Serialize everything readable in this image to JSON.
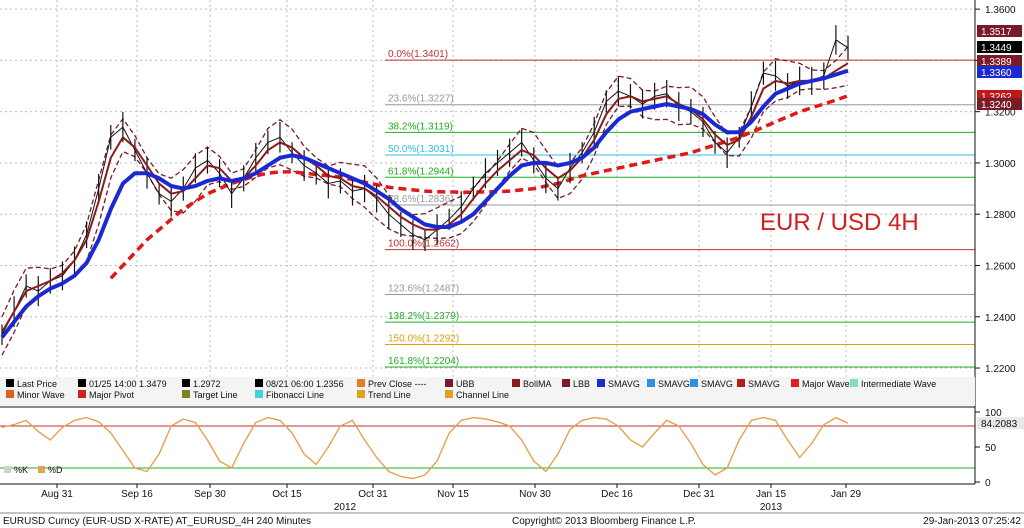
{
  "chart_data": {
    "type": "line",
    "title": "EUR / USD 4H",
    "ylim": [
      1.2165,
      1.362
    ],
    "y_ticks": [
      "1.3600",
      "1.3400",
      "1.3200",
      "1.3000",
      "1.2800",
      "1.2600",
      "1.2400",
      "1.2200"
    ],
    "x_ticks": [
      "Aug 31",
      "Sep 16",
      "Sep 30",
      "Oct 15",
      "Oct 31",
      "Nov 15",
      "Nov 30",
      "Dec 16",
      "Dec 31",
      "Jan 15",
      "Jan 29"
    ],
    "year_labels": [
      "2012",
      "2013"
    ],
    "price_series": {
      "name": "Last Price",
      "values": [
        1.233,
        1.242,
        1.252,
        1.25,
        1.254,
        1.256,
        1.262,
        1.272,
        1.29,
        1.31,
        1.314,
        1.305,
        1.296,
        1.288,
        1.285,
        1.29,
        1.298,
        1.301,
        1.296,
        1.288,
        1.294,
        1.302,
        1.308,
        1.31,
        1.304,
        1.299,
        1.296,
        1.292,
        1.293,
        1.289,
        1.29,
        1.286,
        1.28,
        1.276,
        1.272,
        1.27,
        1.274,
        1.278,
        1.283,
        1.29,
        1.296,
        1.3,
        1.304,
        1.308,
        1.301,
        1.294,
        1.29,
        1.298,
        1.304,
        1.312,
        1.324,
        1.328,
        1.326,
        1.323,
        1.326,
        1.327,
        1.322,
        1.32,
        1.316,
        1.308,
        1.304,
        1.31,
        1.322,
        1.335,
        1.334,
        1.33,
        1.332,
        1.332,
        1.334,
        1.348,
        1.3449
      ]
    },
    "smavg_fast": [
      1.234,
      1.242,
      1.25,
      1.252,
      1.254,
      1.257,
      1.262,
      1.27,
      1.285,
      1.302,
      1.31,
      1.306,
      1.299,
      1.292,
      1.288,
      1.289,
      1.294,
      1.299,
      1.298,
      1.293,
      1.294,
      1.299,
      1.305,
      1.308,
      1.306,
      1.302,
      1.299,
      1.295,
      1.294,
      1.291,
      1.29,
      1.287,
      1.283,
      1.279,
      1.276,
      1.274,
      1.274,
      1.276,
      1.28,
      1.286,
      1.292,
      1.297,
      1.301,
      1.305,
      1.303,
      1.298,
      1.294,
      1.297,
      1.302,
      1.309,
      1.319,
      1.325,
      1.326,
      1.324,
      1.325,
      1.326,
      1.323,
      1.321,
      1.317,
      1.311,
      1.307,
      1.309,
      1.318,
      1.329,
      1.332,
      1.331,
      1.332,
      1.332,
      1.333,
      1.336,
      1.3389
    ],
    "smavg_slow": [
      1.232,
      1.238,
      1.244,
      1.248,
      1.251,
      1.253,
      1.256,
      1.261,
      1.27,
      1.282,
      1.292,
      1.296,
      1.296,
      1.294,
      1.291,
      1.29,
      1.291,
      1.293,
      1.294,
      1.293,
      1.294,
      1.296,
      1.299,
      1.302,
      1.303,
      1.302,
      1.3,
      1.298,
      1.296,
      1.294,
      1.292,
      1.289,
      1.286,
      1.282,
      1.279,
      1.276,
      1.275,
      1.275,
      1.277,
      1.28,
      1.285,
      1.29,
      1.295,
      1.299,
      1.3,
      1.3,
      1.299,
      1.3,
      1.302,
      1.306,
      1.312,
      1.317,
      1.32,
      1.321,
      1.322,
      1.323,
      1.322,
      1.321,
      1.319,
      1.315,
      1.312,
      1.312,
      1.316,
      1.322,
      1.327,
      1.329,
      1.331,
      1.332,
      1.333,
      1.3345,
      1.336
    ],
    "major_trend": [
      null,
      null,
      null,
      null,
      null,
      null,
      null,
      null,
      null,
      1.255,
      1.26,
      1.265,
      1.27,
      1.274,
      1.278,
      1.282,
      1.285,
      1.288,
      1.29,
      1.292,
      1.2935,
      1.295,
      1.296,
      1.2965,
      1.2965,
      1.296,
      1.2955,
      1.295,
      1.2945,
      1.2935,
      1.2925,
      1.2915,
      1.2905,
      1.29,
      1.2895,
      1.289,
      1.2888,
      1.2887,
      1.2886,
      1.2886,
      1.2887,
      1.2888,
      1.289,
      1.2895,
      1.29,
      1.291,
      1.292,
      1.2935,
      1.295,
      1.296,
      1.297,
      1.298,
      1.299,
      1.3,
      1.301,
      1.302,
      1.303,
      1.304,
      1.3055,
      1.307,
      1.3085,
      1.31,
      1.312,
      1.314,
      1.316,
      1.318,
      1.32,
      1.3215,
      1.323,
      1.3245,
      1.3262
    ],
    "fibonacci": [
      {
        "label": "0.0%(1.3401)",
        "value": 1.3401,
        "color": "#c03030"
      },
      {
        "label": "23.6%(1.3227)",
        "value": 1.3227,
        "color": "#999999"
      },
      {
        "label": "38.2%(1.3119)",
        "value": 1.3119,
        "color": "#20b020"
      },
      {
        "label": "50.0%(1.3031)",
        "value": 1.3031,
        "color": "#30c0e0"
      },
      {
        "label": "61.8%(1.2944)",
        "value": 1.2944,
        "color": "#20b020"
      },
      {
        "label": "78.6%(1.2836)",
        "value": 1.2836,
        "color": "#999999"
      },
      {
        "label": "100.0%(1.2662)",
        "value": 1.2662,
        "color": "#c03030"
      },
      {
        "label": "123.6%(1.2487)",
        "value": 1.2487,
        "color": "#999999"
      },
      {
        "label": "138.2%(1.2379)",
        "value": 1.2379,
        "color": "#20b020"
      },
      {
        "label": "150.0%(1.2292)",
        "value": 1.2292,
        "color": "#e0a000"
      },
      {
        "label": "161.8%(1.2204)",
        "value": 1.2204,
        "color": "#20b020"
      }
    ],
    "price_tags": [
      {
        "value": 1.3517,
        "label": "1.3517",
        "color": "#7a1a28"
      },
      {
        "value": 1.3449,
        "label": "1.3449",
        "color": "#000000"
      },
      {
        "value": 1.3389,
        "label": "1.3389",
        "color": "#7a1a28"
      },
      {
        "value": 1.336,
        "label": "1.3360",
        "color": "#1a2ad0"
      },
      {
        "value": 1.3262,
        "label": "1.3262",
        "color": "#c01818"
      },
      {
        "value": 1.324,
        "label": "1.3240",
        "color": "#7a1a28"
      }
    ],
    "legend": [
      {
        "label": "Last Price",
        "color": "#000000"
      },
      {
        "label": "01/25 14:00 1.3479",
        "color": "#000000"
      },
      {
        "label": "1.2972",
        "color": "#000000"
      },
      {
        "label": "08/21 06:00 1.2356",
        "color": "#000000"
      },
      {
        "label": "Prev Close ----",
        "color": "#e08020"
      },
      {
        "label": "UBB",
        "color": "#7a1a28"
      },
      {
        "label": "BollMA",
        "color": "#8b1a1a"
      },
      {
        "label": "LBB",
        "color": "#7a1a28"
      },
      {
        "label": "SMAVG",
        "color": "#1a2ad0"
      },
      {
        "label": "SMAVG",
        "color": "#3090e0"
      },
      {
        "label": "SMAVG",
        "color": "#3090e0"
      },
      {
        "label": "SMAVG",
        "color": "#c01818"
      },
      {
        "label": "Major Wave",
        "color": "#e02020"
      },
      {
        "label": "Intermediate Wave",
        "color": "#80e0c0"
      },
      {
        "label": "Minor Wave",
        "color": "#e06020"
      },
      {
        "label": "Major Pivot",
        "color": "#d02020"
      },
      {
        "label": "Target Line",
        "color": "#808020"
      },
      {
        "label": "Fibonacci Line",
        "color": "#40d0e0"
      },
      {
        "label": "Trend Line",
        "color": "#e0a020"
      },
      {
        "label": "Channel Line",
        "color": "#e0a020"
      }
    ],
    "oscillator": {
      "ylim": [
        0,
        100
      ],
      "y_ticks": [
        "100",
        "50",
        "0"
      ],
      "current_label": "84.2083",
      "legend": [
        "%K",
        "%D"
      ],
      "values": [
        78,
        82,
        88,
        72,
        60,
        78,
        88,
        92,
        86,
        70,
        45,
        20,
        15,
        40,
        80,
        90,
        85,
        60,
        30,
        20,
        55,
        85,
        92,
        88,
        70,
        40,
        25,
        50,
        80,
        88,
        60,
        35,
        15,
        8,
        5,
        10,
        30,
        70,
        88,
        92,
        90,
        86,
        80,
        60,
        30,
        15,
        40,
        75,
        88,
        92,
        90,
        80,
        60,
        50,
        70,
        88,
        80,
        55,
        25,
        10,
        20,
        60,
        88,
        92,
        88,
        60,
        35,
        55,
        82,
        92,
        84
      ]
    },
    "footer": {
      "left": "EURUSD Curncy (EUR-USD X-RATE) AT_EURUSD_4H  240 Minutes",
      "center": "Copyright© 2013 Bloomberg Finance L.P.",
      "right": "29-Jan-2013 07:25:42"
    }
  },
  "colors": {
    "price": "#111111",
    "smavg_fast": "#8b1a1a",
    "smavg_slow": "#1a2ad0",
    "major_trend": "#e01818",
    "band": "#7a1a28",
    "oscillator": "#e8a050",
    "title": "#d02020"
  }
}
